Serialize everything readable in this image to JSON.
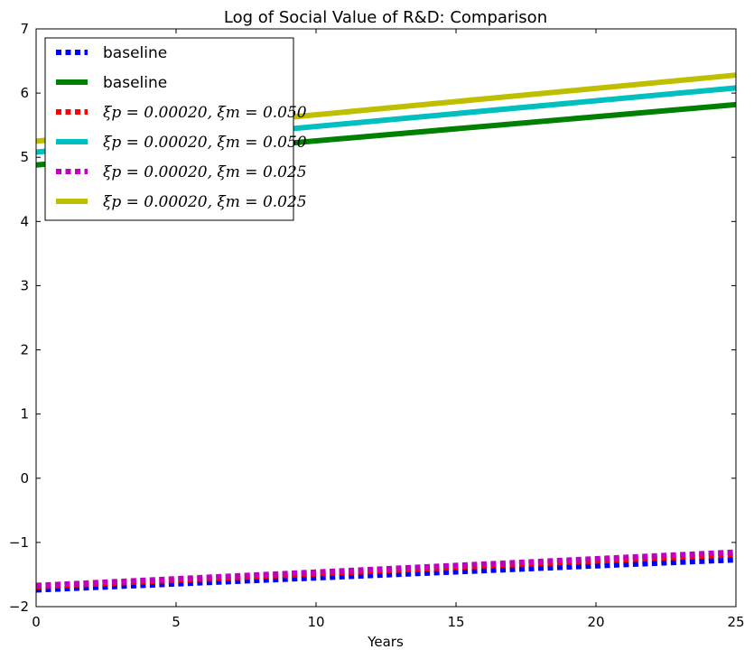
{
  "chart_data": {
    "type": "line",
    "title": "Log of Social Value of R&D: Comparison",
    "xlabel": "Years",
    "ylabel": "",
    "xlim": [
      0,
      25
    ],
    "ylim": [
      -2,
      7
    ],
    "xticks": [
      0,
      5,
      10,
      15,
      20,
      25
    ],
    "yticks": [
      -2,
      -1,
      0,
      1,
      2,
      3,
      4,
      5,
      6,
      7
    ],
    "ytick_labels": [
      "−2",
      "−1",
      "0",
      "1",
      "2",
      "3",
      "4",
      "5",
      "6",
      "7"
    ],
    "grid": false,
    "legend_position": "top-left",
    "series": [
      {
        "name": "baseline",
        "color": "#0000ff",
        "style": "dotted",
        "x": [
          0,
          25
        ],
        "y": [
          -1.74,
          -1.27
        ]
      },
      {
        "name": "baseline",
        "color": "#008000",
        "style": "solid",
        "x": [
          0,
          25
        ],
        "y": [
          4.88,
          5.82
        ]
      },
      {
        "name": "ξp = 0.00020, ξm = 0.050",
        "color": "#ff0000",
        "style": "dotted",
        "x": [
          0,
          25
        ],
        "y": [
          -1.69,
          -1.19
        ]
      },
      {
        "name": "ξp = 0.00020, ξm = 0.050",
        "color": "#00bfbf",
        "style": "solid",
        "x": [
          0,
          25
        ],
        "y": [
          5.08,
          6.08
        ]
      },
      {
        "name": "ξp = 0.00020, ξm = 0.025",
        "color": "#bf00bf",
        "style": "dotted",
        "x": [
          0,
          25
        ],
        "y": [
          -1.67,
          -1.15
        ]
      },
      {
        "name": "ξp = 0.00020, ξm = 0.025",
        "color": "#bfbf00",
        "style": "solid",
        "x": [
          0,
          25
        ],
        "y": [
          5.25,
          6.28
        ]
      }
    ]
  }
}
